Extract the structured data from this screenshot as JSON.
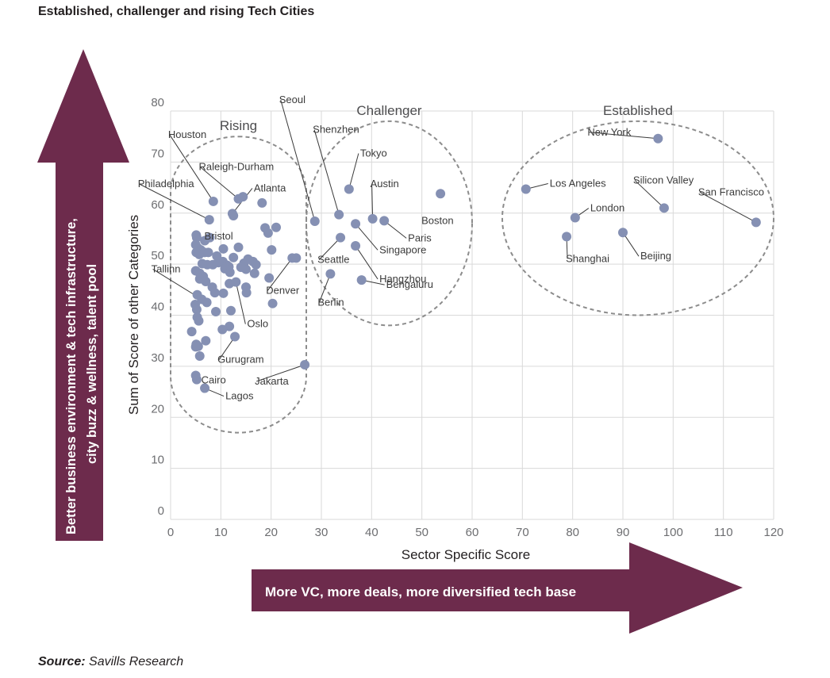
{
  "page_title": "Established, challenger and rising Tech Cities",
  "source": {
    "label": "Source:",
    "text": "Savills Research"
  },
  "arrows": {
    "vertical_text_line1": "Better business environment & tech infrastructure,",
    "vertical_text_line2": "city buzz & wellness, talent pool",
    "horizontal_text": "More VC, more deals, more diversified tech base",
    "color": "#6d2b4c"
  },
  "chart_data": {
    "type": "scatter",
    "xlabel": "Sector Specific Score",
    "ylabel": "Sum of Score of other Categories",
    "xlim": [
      0,
      120
    ],
    "ylim": [
      0,
      80
    ],
    "xticks": [
      0,
      10,
      20,
      30,
      40,
      50,
      60,
      70,
      80,
      90,
      100,
      110,
      120
    ],
    "yticks": [
      0,
      10,
      20,
      30,
      40,
      50,
      60,
      70,
      80
    ],
    "grid": true,
    "point_color": "#8590b3",
    "groups": [
      {
        "name": "Rising",
        "x_range": [
          0,
          27
        ],
        "y_range": [
          17,
          75
        ]
      },
      {
        "name": "Challenger",
        "x_range": [
          27,
          60
        ],
        "y_range": [
          38,
          78
        ]
      },
      {
        "name": "Established",
        "x_range": [
          66,
          120
        ],
        "y_range": [
          40,
          78
        ]
      }
    ],
    "labeled_points": [
      {
        "name": "Houston",
        "x": 8.5,
        "y": 62.3
      },
      {
        "name": "Raleigh-Durham",
        "x": 13.5,
        "y": 62.8
      },
      {
        "name": "Philadelphia",
        "x": 7.7,
        "y": 58.7
      },
      {
        "name": "Atlanta",
        "x": 12.3,
        "y": 59.9
      },
      {
        "name": "Bristol",
        "x": 10.5,
        "y": 53.0
      },
      {
        "name": "Tallinn",
        "x": 7.2,
        "y": 42.5
      },
      {
        "name": "Oslo",
        "x": 13.0,
        "y": 46.5
      },
      {
        "name": "Gurugram",
        "x": 12.8,
        "y": 35.8
      },
      {
        "name": "Cairo",
        "x": 5.0,
        "y": 28.2
      },
      {
        "name": "Lagos",
        "x": 6.8,
        "y": 25.7
      },
      {
        "name": "Jakarta",
        "x": 26.7,
        "y": 30.3
      },
      {
        "name": "Denver",
        "x": 24.2,
        "y": 51.2
      },
      {
        "name": "Seoul",
        "x": 28.7,
        "y": 58.4
      },
      {
        "name": "Shenzhen",
        "x": 33.5,
        "y": 59.7
      },
      {
        "name": "Tokyo",
        "x": 35.5,
        "y": 64.7
      },
      {
        "name": "Austin",
        "x": 40.2,
        "y": 58.9
      },
      {
        "name": "Boston",
        "x": 53.7,
        "y": 63.8
      },
      {
        "name": "Paris",
        "x": 42.5,
        "y": 58.5
      },
      {
        "name": "Singapore",
        "x": 36.8,
        "y": 57.9
      },
      {
        "name": "Seattle",
        "x": 33.8,
        "y": 55.2
      },
      {
        "name": "Hangzhou",
        "x": 36.8,
        "y": 53.6
      },
      {
        "name": "Berlin",
        "x": 31.8,
        "y": 48.1
      },
      {
        "name": "Bengaluru",
        "x": 38.0,
        "y": 46.9
      },
      {
        "name": "New York",
        "x": 97.0,
        "y": 74.6
      },
      {
        "name": "Los Angeles",
        "x": 70.7,
        "y": 64.7
      },
      {
        "name": "London",
        "x": 80.5,
        "y": 59.1
      },
      {
        "name": "Silicon Valley",
        "x": 98.2,
        "y": 61.0
      },
      {
        "name": "San Francisco",
        "x": 116.5,
        "y": 58.2
      },
      {
        "name": "Shanghai",
        "x": 78.8,
        "y": 55.4
      },
      {
        "name": "Beijing",
        "x": 90.0,
        "y": 56.2
      }
    ],
    "unlabeled_points": [
      [
        5.1,
        55.7
      ],
      [
        5.2,
        55.2
      ],
      [
        7.8,
        55.2
      ],
      [
        6.8,
        54.6
      ],
      [
        5.0,
        53.8
      ],
      [
        5.5,
        53.1
      ],
      [
        6.0,
        52.8
      ],
      [
        5.1,
        52.3
      ],
      [
        5.7,
        51.9
      ],
      [
        6.8,
        52.3
      ],
      [
        7.5,
        52.3
      ],
      [
        9.2,
        51.6
      ],
      [
        10.4,
        50.5
      ],
      [
        9.5,
        50.3
      ],
      [
        6.3,
        50.1
      ],
      [
        7.3,
        49.9
      ],
      [
        8.4,
        49.9
      ],
      [
        11.2,
        49.8
      ],
      [
        11.6,
        49.5
      ],
      [
        10.8,
        49.1
      ],
      [
        11.8,
        48.4
      ],
      [
        5.0,
        48.7
      ],
      [
        5.8,
        48.2
      ],
      [
        6.5,
        47.6
      ],
      [
        5.8,
        47.1
      ],
      [
        7.0,
        46.6
      ],
      [
        8.3,
        45.5
      ],
      [
        8.8,
        44.4
      ],
      [
        10.5,
        44.3
      ],
      [
        5.3,
        44.0
      ],
      [
        6.2,
        43.1
      ],
      [
        4.9,
        42.1
      ],
      [
        5.2,
        41.1
      ],
      [
        5.3,
        39.6
      ],
      [
        5.6,
        38.9
      ],
      [
        9.0,
        40.7
      ],
      [
        12.0,
        40.9
      ],
      [
        11.7,
        37.8
      ],
      [
        10.3,
        37.2
      ],
      [
        4.2,
        36.8
      ],
      [
        7.0,
        35.0
      ],
      [
        5.1,
        34.3
      ],
      [
        5.5,
        33.9
      ],
      [
        5.0,
        33.8
      ],
      [
        5.8,
        32.0
      ],
      [
        5.2,
        27.4
      ],
      [
        12.5,
        51.3
      ],
      [
        13.5,
        53.3
      ],
      [
        15.4,
        51.0
      ],
      [
        14.6,
        50.2
      ],
      [
        16.4,
        50.5
      ],
      [
        17.0,
        49.9
      ],
      [
        15.0,
        49.0
      ],
      [
        14.0,
        49.4
      ],
      [
        16.7,
        48.2
      ],
      [
        19.6,
        47.3
      ],
      [
        15.0,
        45.5
      ],
      [
        15.1,
        44.4
      ],
      [
        20.3,
        42.3
      ],
      [
        18.8,
        57.1
      ],
      [
        21.0,
        57.2
      ],
      [
        19.4,
        56.1
      ],
      [
        18.2,
        62.0
      ],
      [
        20.1,
        52.8
      ],
      [
        25.0,
        51.2
      ],
      [
        11.7,
        46.2
      ],
      [
        14.4,
        63.2
      ],
      [
        12.5,
        59.5
      ]
    ]
  }
}
